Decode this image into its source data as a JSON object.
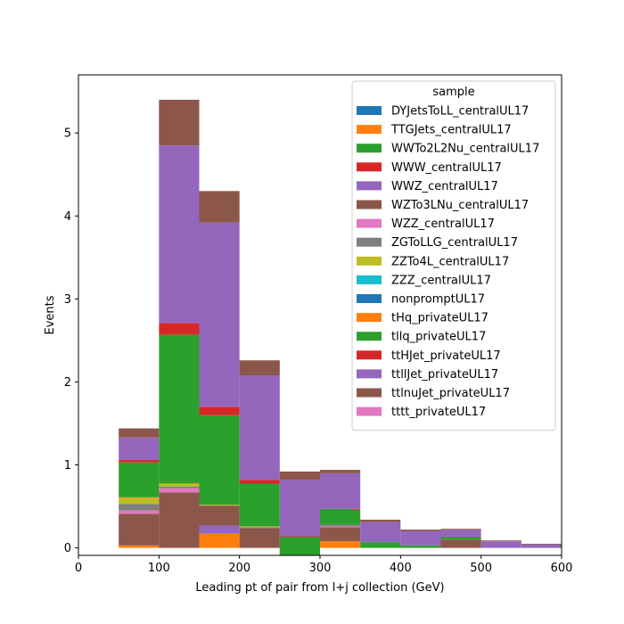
{
  "chart_data": {
    "type": "bar",
    "stacked": true,
    "xlabel": "Leading pt of pair from l+j collection (GeV)",
    "ylabel": "Events",
    "xlim": [
      0,
      600
    ],
    "ylim": [
      -0.09,
      5.7
    ],
    "xticks": [
      0,
      100,
      200,
      300,
      400,
      500,
      600
    ],
    "yticks": [
      0,
      1,
      2,
      3,
      4,
      5
    ],
    "grid": false,
    "legend": {
      "title": "sample",
      "placement": "top-right"
    },
    "bins": [
      [
        50,
        100
      ],
      [
        100,
        150
      ],
      [
        150,
        200
      ],
      [
        200,
        250
      ],
      [
        250,
        300
      ],
      [
        300,
        350
      ],
      [
        350,
        400
      ],
      [
        400,
        450
      ],
      [
        450,
        500
      ],
      [
        500,
        550
      ],
      [
        550,
        600
      ]
    ],
    "series": [
      {
        "name": "DYJetsToLL_centralUL17",
        "color": "#1f77b4",
        "values": [
          0,
          0,
          0,
          0,
          0,
          0,
          0,
          0,
          0,
          0,
          0
        ]
      },
      {
        "name": "TTGJets_centralUL17",
        "color": "#ff7f0e",
        "values": [
          0.03,
          0,
          0.17,
          0,
          0,
          0.08,
          0,
          0,
          0,
          0,
          0
        ]
      },
      {
        "name": "WWTo2L2Nu_centralUL17",
        "color": "#2ca02c",
        "values": [
          0,
          0,
          0,
          0,
          0,
          0,
          0,
          0,
          0,
          0,
          0
        ]
      },
      {
        "name": "WWW_centralUL17",
        "color": "#d62728",
        "values": [
          0,
          0,
          0,
          0,
          0,
          0,
          0,
          0,
          0,
          0,
          0
        ]
      },
      {
        "name": "WWZ_centralUL17",
        "color": "#9467bd",
        "values": [
          0,
          0,
          0.1,
          0,
          0,
          0,
          0,
          0,
          0,
          0,
          0
        ]
      },
      {
        "name": "WZTo3LNu_centralUL17",
        "color": "#8c564b",
        "values": [
          0.38,
          0.67,
          0.24,
          0.24,
          -0.17,
          0.17,
          0,
          0,
          0.1,
          0,
          0
        ]
      },
      {
        "name": "WZZ_centralUL17",
        "color": "#e377c2",
        "values": [
          0.04,
          0.05,
          0,
          0,
          0.01,
          0.01,
          0,
          0,
          0,
          0,
          0
        ]
      },
      {
        "name": "ZGToLLG_centralUL17",
        "color": "#7f7f7f",
        "values": [
          0.08,
          0.02,
          0,
          0.01,
          0.02,
          0.02,
          0,
          0,
          0,
          0,
          0
        ]
      },
      {
        "name": "ZZTo4L_centralUL17",
        "color": "#bcbd22",
        "values": [
          0.07,
          0.03,
          0.01,
          0.01,
          0,
          0,
          0,
          0,
          0,
          0,
          0
        ]
      },
      {
        "name": "ZZZ_centralUL17",
        "color": "#17becf",
        "values": [
          0,
          0,
          0,
          0,
          0,
          0,
          0,
          0,
          0,
          0,
          0
        ]
      },
      {
        "name": "nonpromptUL17",
        "color": "#1f77b4",
        "values": [
          0,
          0,
          0,
          0,
          0,
          0,
          0,
          0,
          0,
          0,
          0
        ]
      },
      {
        "name": "tHq_privateUL17",
        "color": "#ff7f0e",
        "values": [
          0.01,
          0.01,
          0,
          0,
          0,
          0,
          0,
          0,
          0,
          0,
          0
        ]
      },
      {
        "name": "tllq_privateUL17",
        "color": "#2ca02c",
        "values": [
          0.42,
          1.79,
          1.08,
          0.51,
          0.27,
          0.18,
          0.07,
          0.03,
          0.03,
          0,
          0
        ]
      },
      {
        "name": "ttHJet_privateUL17",
        "color": "#d62728",
        "values": [
          0.03,
          0.14,
          0.1,
          0.05,
          0.01,
          0.01,
          0,
          0,
          0,
          0,
          0
        ]
      },
      {
        "name": "ttllJet_privateUL17",
        "color": "#9467bd",
        "values": [
          0.27,
          2.14,
          2.22,
          1.26,
          0.68,
          0.43,
          0.24,
          0.17,
          0.09,
          0.08,
          0.04
        ]
      },
      {
        "name": "ttlnuJet_privateUL17",
        "color": "#8c564b",
        "values": [
          0.11,
          0.55,
          0.38,
          0.18,
          0.1,
          0.04,
          0.03,
          0.02,
          0.01,
          0.01,
          0.01
        ]
      },
      {
        "name": "tttt_privateUL17",
        "color": "#e377c2",
        "values": [
          0,
          0,
          0,
          0,
          0,
          0,
          0,
          0,
          0,
          0,
          0
        ]
      }
    ]
  }
}
